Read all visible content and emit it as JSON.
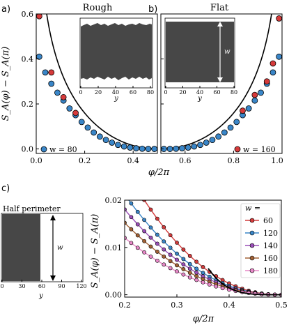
{
  "panel_labels": {
    "a": "a)",
    "b": "b)",
    "c": "c)"
  },
  "chart_data": [
    {
      "id": "a",
      "type": "scatter",
      "title": "Rough",
      "xlim": [
        0,
        0.5
      ],
      "ylim": [
        -0.02,
        0.6
      ],
      "xticks": [
        "0.0",
        "0.2",
        "0.4"
      ],
      "yticks": [
        "0.0",
        "0.2",
        "0.4",
        "0.6"
      ],
      "ylabel": "S_A(φ) − S_A(π)",
      "series": [
        {
          "name": "w = 80",
          "color": "#3a86c8",
          "x": [
            0.0125,
            0.0375,
            0.0625,
            0.0875,
            0.1125,
            0.1375,
            0.1625,
            0.1875,
            0.2125,
            0.2375,
            0.2625,
            0.2875,
            0.3125,
            0.3375,
            0.3625,
            0.3875,
            0.4125,
            0.4375,
            0.4625,
            0.4875
          ],
          "y": [
            0.41,
            0.34,
            0.29,
            0.25,
            0.215,
            0.18,
            0.15,
            0.12,
            0.095,
            0.073,
            0.055,
            0.04,
            0.028,
            0.018,
            0.011,
            0.006,
            0.003,
            0.001,
            0.0,
            0.0
          ]
        },
        {
          "color": "#d63a3a",
          "x": [
            0.0125,
            0.0625,
            0.1125,
            0.1625
          ],
          "y": [
            0.59,
            0.34,
            0.23,
            0.16
          ]
        }
      ],
      "curve": {
        "color": "#000000",
        "x_start": 0.018,
        "formula": "(1/(6π)) ln sin(π·x)² offset"
      }
    },
    {
      "id": "b",
      "type": "scatter",
      "title": "Flat",
      "xlim": [
        0.5,
        1.0
      ],
      "ylim": [
        -0.02,
        0.6
      ],
      "xticks": [
        "0.6",
        "0.8",
        "1.0"
      ],
      "series": [
        {
          "name": "w = 160",
          "color": "#d63a3a",
          "x": [
            0.8375,
            0.8875,
            0.9375,
            0.9625,
            0.9875
          ],
          "y": [
            0.17,
            0.24,
            0.3,
            0.38,
            0.58
          ]
        },
        {
          "color": "#3a86c8",
          "x": [
            0.5125,
            0.5375,
            0.5625,
            0.5875,
            0.6125,
            0.6375,
            0.6625,
            0.6875,
            0.7125,
            0.7375,
            0.7625,
            0.7875,
            0.8125,
            0.8375,
            0.8625,
            0.8875,
            0.9125,
            0.9375,
            0.9625,
            0.9875
          ],
          "y": [
            0.0,
            0.0,
            0.001,
            0.003,
            0.006,
            0.011,
            0.018,
            0.028,
            0.04,
            0.055,
            0.073,
            0.095,
            0.12,
            0.15,
            0.18,
            0.215,
            0.25,
            0.29,
            0.34,
            0.41
          ]
        }
      ]
    },
    {
      "id": "c",
      "type": "line",
      "xlim": [
        0.2,
        0.5
      ],
      "ylim": [
        -0.0005,
        0.02
      ],
      "xticks": [
        "0.2",
        "0.3",
        "0.4",
        "0.5"
      ],
      "yticks": [
        "0.00",
        "0.01",
        "0.02"
      ],
      "xlabel": "φ/2π",
      "ylabel": "S_A(φ) − S_A(π)",
      "legend_title": "w =",
      "legend_position": "upper-right",
      "series": [
        {
          "name": "60",
          "color": "#d43c3c",
          "offset": 0.061
        },
        {
          "name": "120",
          "color": "#3a86c8",
          "offset": 0.075
        },
        {
          "name": "140",
          "color": "#9b4fb8",
          "offset": 0.087
        },
        {
          "name": "160",
          "color": "#a36236",
          "offset": 0.099
        },
        {
          "name": "180",
          "color": "#e888c8",
          "offset": 0.113
        }
      ],
      "curve": {
        "color": "#000000"
      }
    }
  ],
  "xlabel_ab": "φ/2π",
  "insets": {
    "rough": {
      "xticks": [
        "0",
        "20",
        "40",
        "60",
        "80"
      ],
      "xlabel": "y"
    },
    "flat": {
      "xticks": [
        "0",
        "20",
        "40",
        "60",
        "80"
      ],
      "xlabel": "y",
      "wlabel": "w"
    },
    "half": {
      "title": "Half perimeter",
      "xticks": [
        "0",
        "30",
        "60",
        "90",
        "120"
      ],
      "xlabel": "y",
      "wlabel": "w"
    }
  }
}
